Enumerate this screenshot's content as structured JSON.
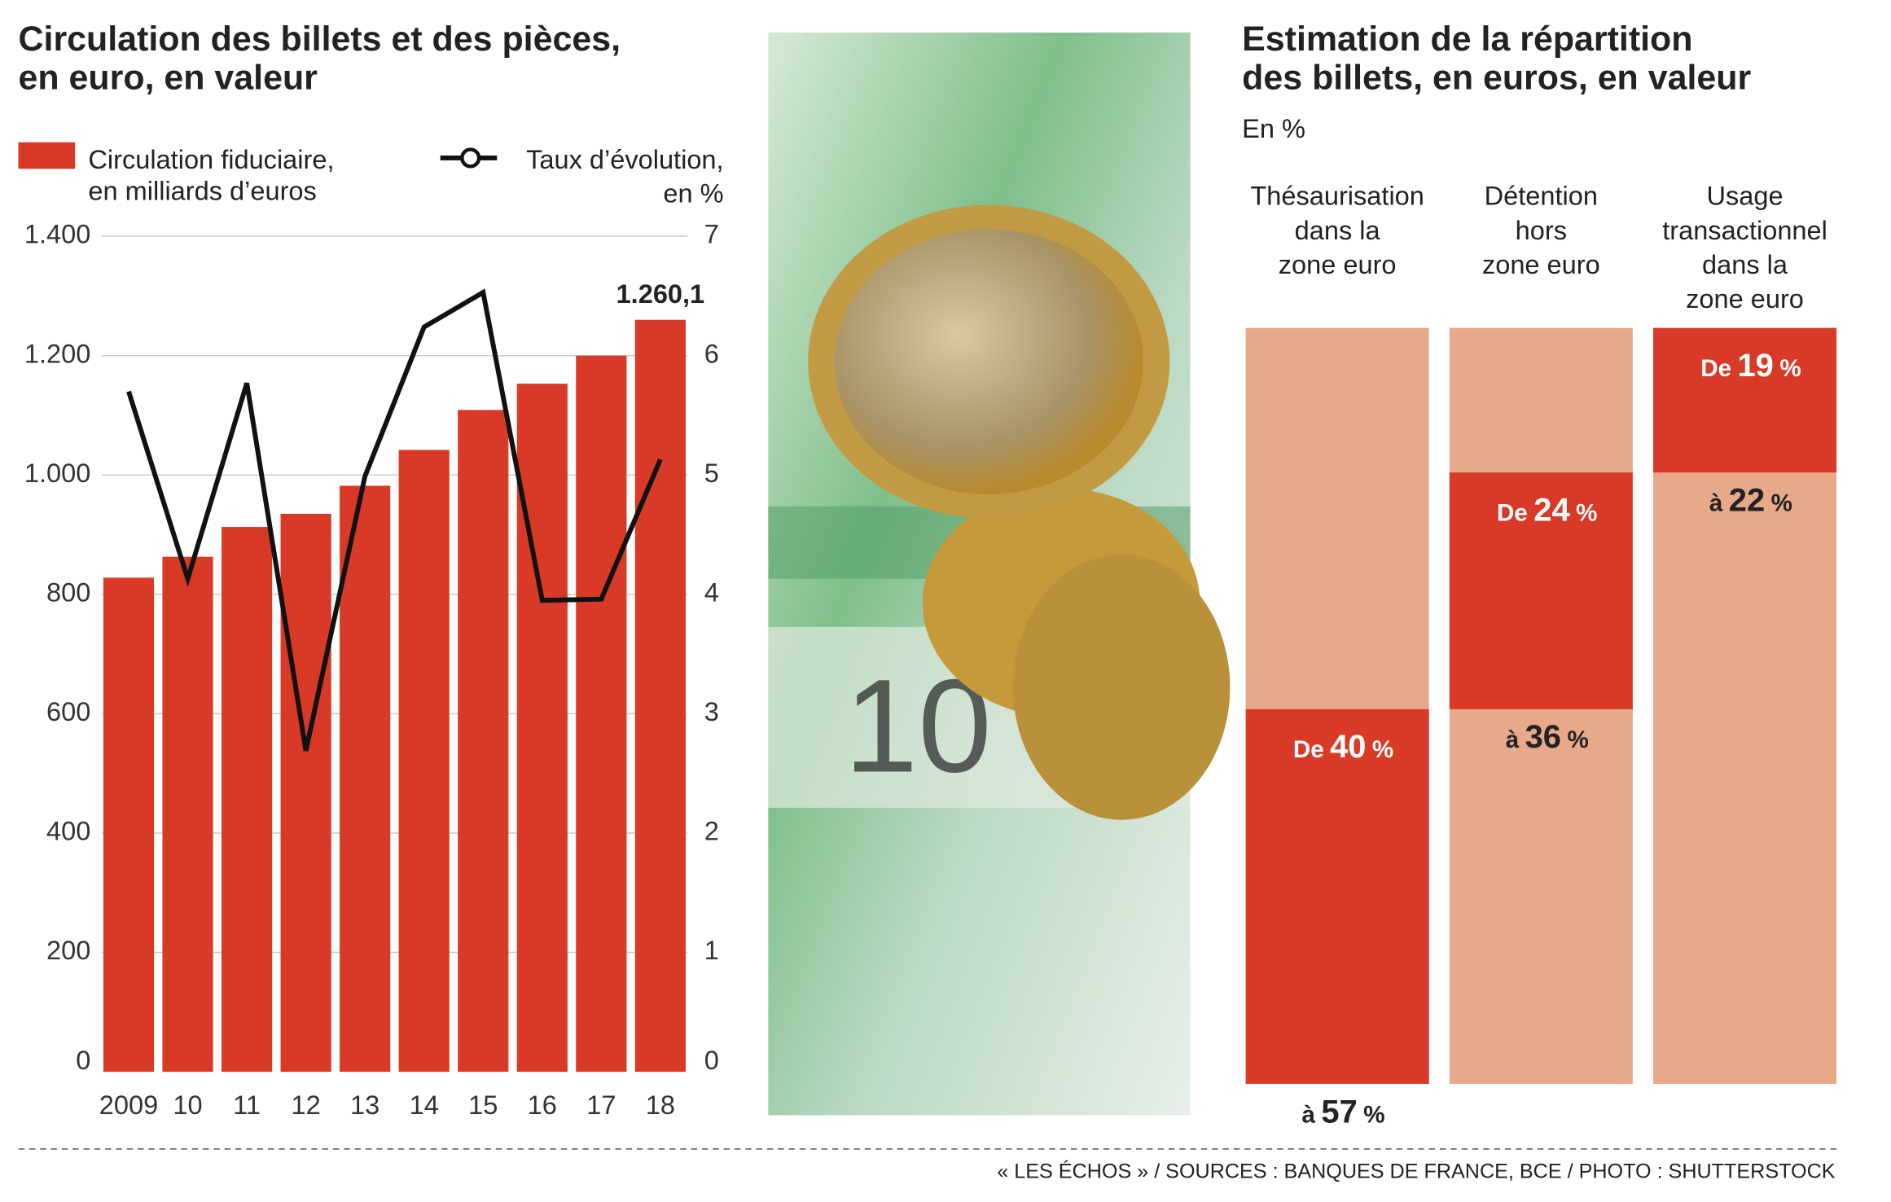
{
  "chart_data": [
    {
      "type": "bar-line",
      "title": "Circulation des billets et des pièces,\nen euro, en valeur",
      "categories": [
        "2009",
        "10",
        "11",
        "12",
        "13",
        "14",
        "15",
        "16",
        "17",
        "18"
      ],
      "series": [
        {
          "name": "Circulation fiduciaire,\nen milliards d’euros",
          "color": "#d83a27",
          "type": "bar",
          "values": [
            828,
            863,
            913,
            935,
            982,
            1042,
            1109,
            1153,
            1200,
            1260.1
          ],
          "value_labels": [
            null,
            null,
            null,
            null,
            null,
            null,
            null,
            null,
            null,
            "1.260,1"
          ]
        },
        {
          "name": "Taux d’évolution,\nen %",
          "color": "#111111",
          "type": "line",
          "axis": "y2",
          "values": [
            5.7,
            4.13,
            5.77,
            2.69,
            4.99,
            6.24,
            6.53,
            3.95,
            3.96,
            5.13
          ]
        }
      ],
      "ylim": [
        0,
        1400
      ],
      "yticks": [
        0,
        200,
        400,
        600,
        800,
        {
          "value": 1000,
          "label": "1.000"
        },
        {
          "value": 1200,
          "label": "1.200"
        },
        {
          "value": 1400,
          "label": "1.400"
        }
      ],
      "y2lim": [
        0,
        7
      ],
      "y2ticks": [
        0,
        1,
        2,
        3,
        4,
        5,
        6,
        7
      ],
      "grid": true
    },
    {
      "type": "range",
      "title": "Estimation de la répartition\ndes billets, en euros, en valeur",
      "subtitle": "En %",
      "categories": [
        "Thésaurisation\ndans la\nzone euro",
        "Détention\nhors\nzone euro",
        "Usage\ntransactionnel\ndans la\nzone euro"
      ],
      "low": [
        40,
        24,
        19
      ],
      "high": [
        57,
        36,
        22
      ],
      "from_label": "De",
      "to_label": "à",
      "unit": "%",
      "color": "#d83a27",
      "background_color": "#e8a98b"
    }
  ],
  "source": "« LES ÉCHOS » / SOURCES : BANQUES DE FRANCE, BCE / PHOTO : SHUTTERSTOCK"
}
